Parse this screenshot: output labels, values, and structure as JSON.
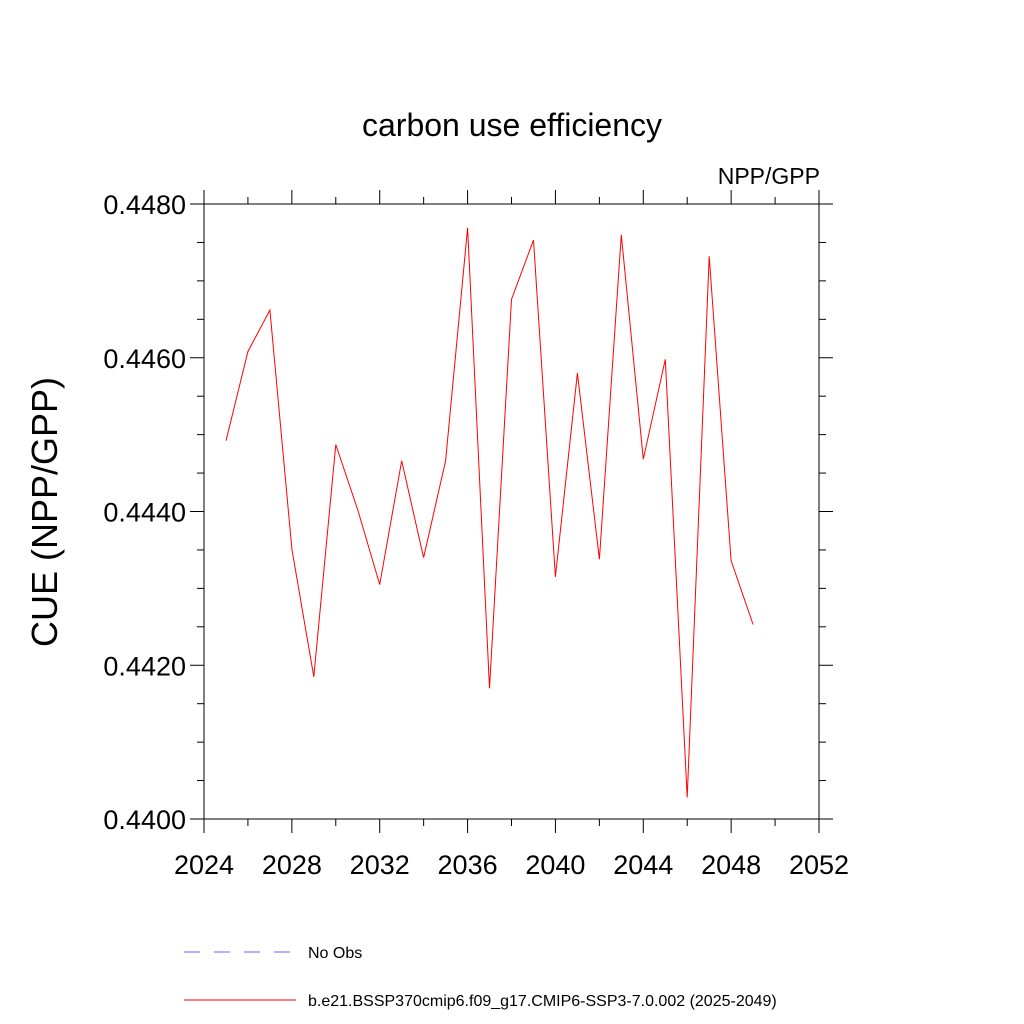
{
  "chart_data": {
    "type": "line",
    "title": "carbon use efficiency",
    "subtitle": "NPP/GPP",
    "xlabel": "",
    "ylabel": "CUE  (NPP/GPP)",
    "xlim": [
      2024,
      2052
    ],
    "ylim": [
      0.44,
      0.448
    ],
    "x_ticks": [
      2024,
      2028,
      2032,
      2036,
      2040,
      2044,
      2048,
      2052
    ],
    "x_tick_labels": [
      "2024",
      "2028",
      "2032",
      "2036",
      "2040",
      "2044",
      "2048",
      "2052"
    ],
    "x_minor_step": 2,
    "y_ticks": [
      0.44,
      0.442,
      0.444,
      0.446,
      0.448
    ],
    "y_tick_labels": [
      "0.4400",
      "0.4420",
      "0.4440",
      "0.4460",
      "0.4480"
    ],
    "y_minor_step": 0.0005,
    "grid": false,
    "legend_position": "bottom",
    "series": [
      {
        "name": "No Obs",
        "color": "#0000ff",
        "style": "dashed",
        "x": [],
        "y": []
      },
      {
        "name": "b.e21.BSSP370cmip6.f09_g17.CMIP6-SSP3-7.0.002 (2025-2049)",
        "color": "#ff0000",
        "style": "solid",
        "x": [
          2025,
          2026,
          2027,
          2028,
          2029,
          2030,
          2031,
          2032,
          2033,
          2034,
          2035,
          2036,
          2037,
          2038,
          2039,
          2040,
          2041,
          2042,
          2043,
          2044,
          2045,
          2046,
          2047,
          2048,
          2049
        ],
        "y": [
          0.44492,
          0.44608,
          0.44662,
          0.44351,
          0.44185,
          0.44487,
          0.44402,
          0.44305,
          0.44466,
          0.4434,
          0.44466,
          0.44769,
          0.4417,
          0.44676,
          0.44753,
          0.44315,
          0.4458,
          0.44338,
          0.4476,
          0.44468,
          0.44598,
          0.44028,
          0.44732,
          0.44336,
          0.44253
        ]
      }
    ]
  }
}
